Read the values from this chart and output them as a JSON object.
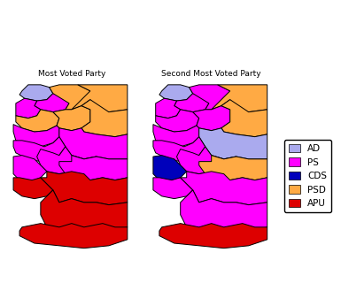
{
  "title_left": "Most Voted Party",
  "title_right": "Second Most Voted Party",
  "legend_entries": [
    "AD",
    "PS",
    "CDS",
    "PSD",
    "APU"
  ],
  "legend_colors": [
    "#aaaaee",
    "#ff00ff",
    "#0000bb",
    "#ffaa44",
    "#dd0000"
  ],
  "party_colors": {
    "AD": "#aaaaee",
    "PS": "#ff00ff",
    "CDS": "#0000bb",
    "PSD": "#ffaa44",
    "APU": "#dd0000"
  },
  "most_voted": {
    "Viana do Castelo": "AD",
    "Braga": "PS",
    "Vila Real": "PSD",
    "Braganca": "PSD",
    "Porto": "PS",
    "Aveiro": "PSD",
    "Viseu": "PSD",
    "Guarda": "PSD",
    "Coimbra": "PS",
    "Castelo Branco": "PS",
    "Leiria": "PS",
    "Santarem": "PS",
    "Lisboa": "PS",
    "Portalegre": "PS",
    "Setubal": "APU",
    "Evora": "APU",
    "Beja": "APU",
    "Faro": "APU"
  },
  "second_voted": {
    "Viana do Castelo": "AD",
    "Braga": "PS",
    "Vila Real": "PS",
    "Braganca": "PSD",
    "Porto": "PS",
    "Aveiro": "PS",
    "Viseu": "PS",
    "Guarda": "PSD",
    "Coimbra": "PS",
    "Castelo Branco": "AD",
    "Leiria": "PS",
    "Santarem": "PS",
    "Lisboa": "CDS",
    "Portalegre": "PSD",
    "Setubal": "PS",
    "Evora": "PS",
    "Beja": "PS",
    "Faro": "APU"
  },
  "background_color": "#ffffff",
  "edge_color": "#000000",
  "edge_width": 0.7
}
